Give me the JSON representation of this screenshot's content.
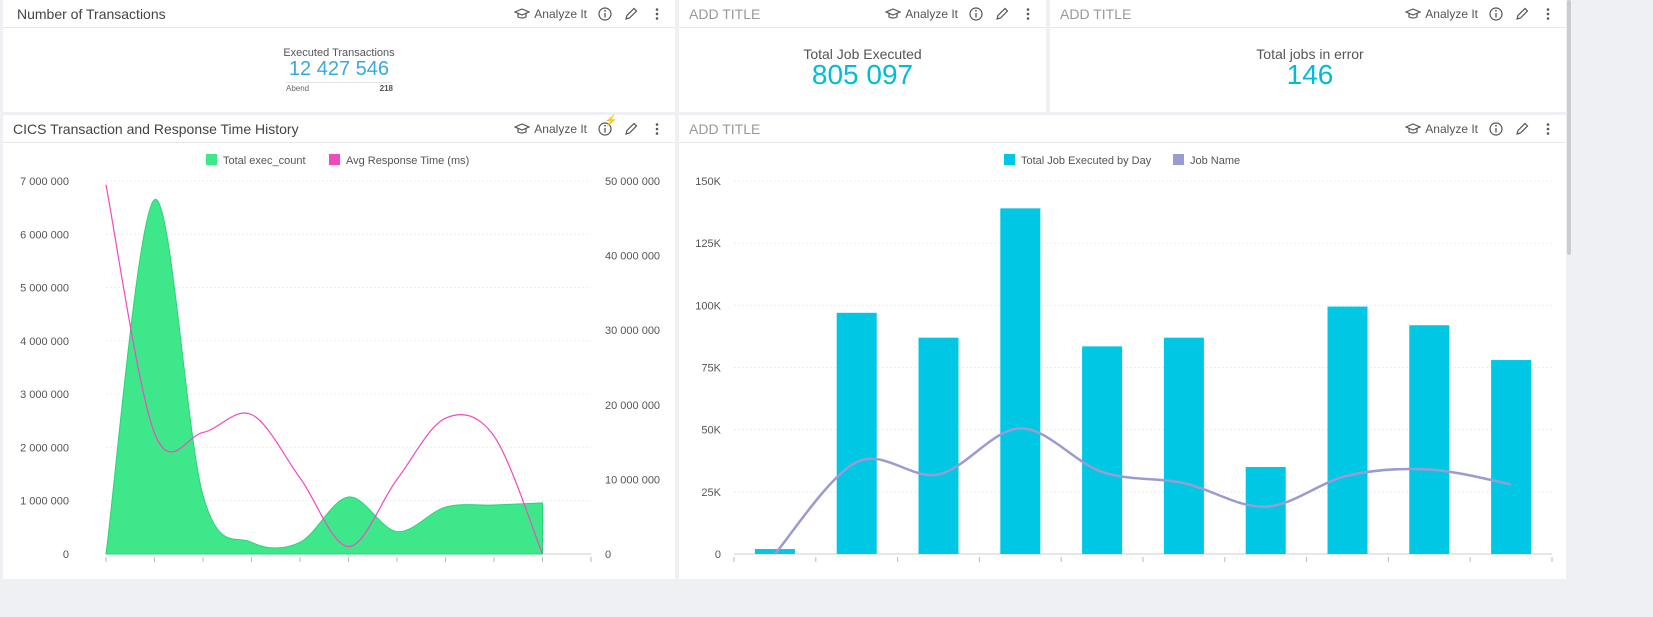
{
  "common": {
    "analyze_label": "Analyze It"
  },
  "panel1": {
    "title": "Number of Transactions",
    "kpi_label": "Executed Transactions",
    "kpi_value": "12 427 546",
    "sub_label": "Abend",
    "sub_value": "218"
  },
  "panel2": {
    "title": "ADD TITLE",
    "kpi_label": "Total Job Executed",
    "kpi_value": "805 097"
  },
  "panel3": {
    "title": "ADD TITLE",
    "kpi_label": "Total jobs in error",
    "kpi_value": "146"
  },
  "panel4": {
    "title": "CICS Transaction and Response Time History",
    "legend": [
      "Total exec_count",
      "Avg Response Time (ms)"
    ]
  },
  "panel5": {
    "title": "ADD TITLE",
    "legend": [
      "Total Job Executed by Day",
      "Job Name"
    ]
  },
  "colors": {
    "accent": "#00bcd8",
    "area": "#3ee88a",
    "line_pink": "#f04ac0",
    "bar": "#00c8e4",
    "line_purple": "#9b9bd2"
  },
  "chart_data": [
    {
      "type": "area",
      "title": "CICS Transaction and Response Time History",
      "x": [
        0,
        1,
        2,
        3,
        4,
        5,
        6,
        7,
        8,
        9
      ],
      "series": [
        {
          "name": "Total exec_count",
          "axis": "left",
          "type": "area",
          "values": [
            0,
            6650000,
            1100000,
            220000,
            220000,
            1070000,
            420000,
            880000,
            920000,
            960000
          ]
        },
        {
          "name": "Avg Response Time (ms)",
          "axis": "right",
          "type": "line",
          "values": [
            49500000,
            16200000,
            16300000,
            18700000,
            10200000,
            1000000,
            10000000,
            18200000,
            15800000,
            0
          ]
        }
      ],
      "ylim_left": [
        0,
        7000000
      ],
      "ylim_right": [
        0,
        50000000
      ],
      "yticks_left": [
        "0",
        "1 000 000",
        "2 000 000",
        "3 000 000",
        "4 000 000",
        "5 000 000",
        "6 000 000",
        "7 000 000"
      ],
      "yticks_right": [
        "0",
        "10 000 000",
        "20 000 000",
        "30 000 000",
        "40 000 000",
        "50 000 000"
      ],
      "grid": true,
      "legend_position": "top"
    },
    {
      "type": "bar",
      "categories": [
        "",
        "",
        "",
        "",
        "",
        "",
        "",
        "",
        "",
        ""
      ],
      "series": [
        {
          "name": "Total Job Executed by Day",
          "type": "bar",
          "values": [
            2000,
            97000,
            87000,
            139000,
            83500,
            87000,
            35000,
            99500,
            92000,
            78000
          ]
        },
        {
          "name": "Job Name",
          "type": "line",
          "values": [
            0,
            37000,
            32000,
            50500,
            33000,
            28500,
            19000,
            31500,
            34000,
            28000
          ]
        }
      ],
      "ylim": [
        0,
        150000
      ],
      "yticks": [
        "0",
        "25K",
        "50K",
        "75K",
        "100K",
        "125K",
        "150K"
      ],
      "grid": true,
      "legend_position": "top"
    }
  ]
}
